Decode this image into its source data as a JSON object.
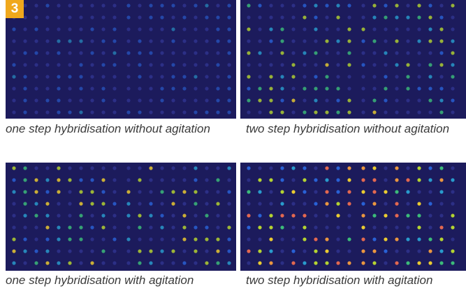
{
  "figure": {
    "label": "3",
    "panels": [
      {
        "caption": "one step hybridisation without agitation"
      },
      {
        "caption": "two step hybridisation without agitation"
      },
      {
        "caption": "one step hybridisation with agitation"
      },
      {
        "caption": "two step hybridisation with agitation"
      }
    ]
  }
}
